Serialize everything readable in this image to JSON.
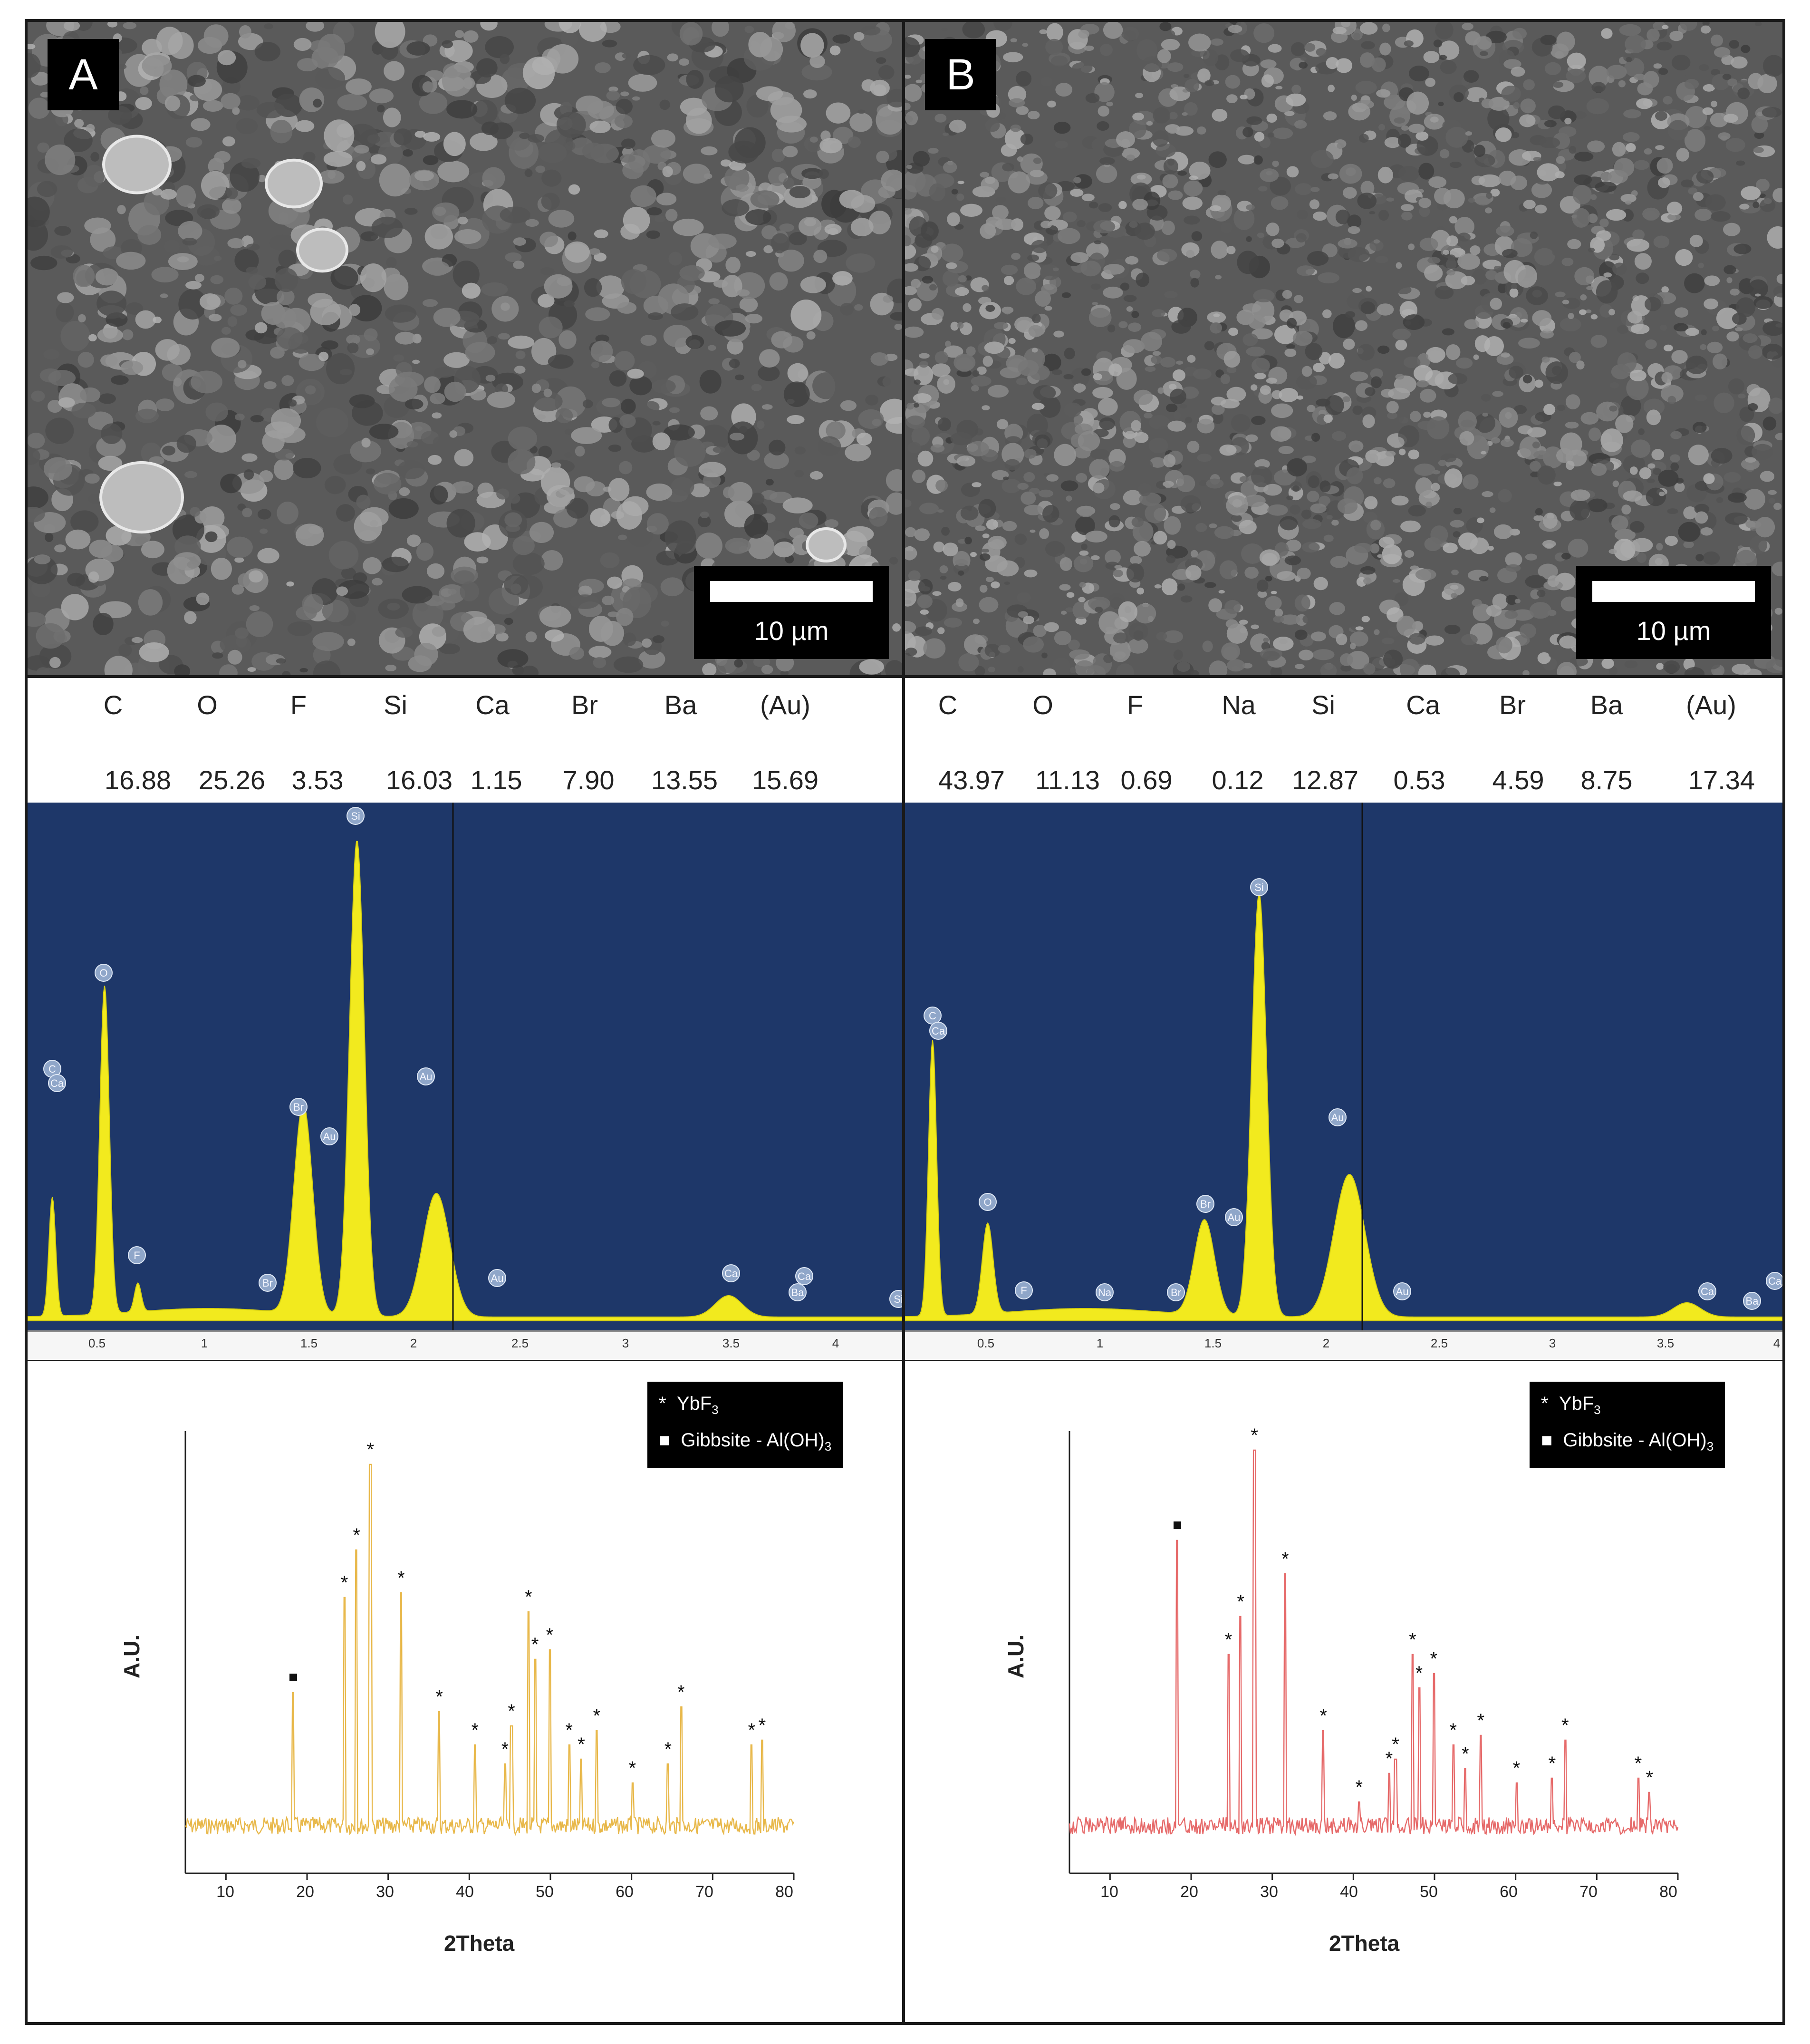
{
  "panels": [
    {
      "label": "A",
      "scalebar": "10 µm",
      "elements": [
        "C",
        "O",
        "F",
        "Si",
        "Ca",
        "Br",
        "Ba",
        "(Au)"
      ],
      "values": [
        "16.88",
        "25.26",
        "3.53",
        "16.03",
        "1.15",
        "7.90",
        "13.55",
        "15.69"
      ],
      "eds_peak_labels": [
        "C",
        "Ca",
        "O",
        "F",
        "Br",
        "Br",
        "Au",
        "Si",
        "Au",
        "Au",
        "Ca",
        "Ba",
        "Ca",
        "Si"
      ],
      "eds_axis_ticks": [
        "0.5",
        "1",
        "1.5",
        "2",
        "2.5",
        "3",
        "3.5",
        "4"
      ],
      "legend": {
        "ybf3_symbol": "*",
        "ybf3_label": "YbF",
        "ybf3_sub": "3",
        "gibb_symbol": "■",
        "gibb_label": "Gibbsite - Al(OH)",
        "gibb_sub": "3"
      },
      "xrd_ylabel": "A.U.",
      "xrd_xlabel": "2Theta",
      "xrd_ticks": [
        "10",
        "20",
        "30",
        "40",
        "50",
        "60",
        "70",
        "80"
      ],
      "color": "#e8b84a"
    },
    {
      "label": "B",
      "scalebar": "10 µm",
      "elements": [
        "C",
        "O",
        "F",
        "Na",
        "Si",
        "Ca",
        "Br",
        "Ba",
        "(Au)"
      ],
      "values": [
        "43.97",
        "11.13",
        "0.69",
        "0.12",
        "12.87",
        "0.53",
        "4.59",
        "8.75",
        "17.34"
      ],
      "eds_peak_labels": [
        "C",
        "Ca",
        "O",
        "F",
        "Na",
        "Br",
        "Br",
        "Au",
        "Si",
        "Au",
        "Au",
        "Ca",
        "Ba",
        "Ca"
      ],
      "eds_axis_ticks": [
        "0.5",
        "1",
        "1.5",
        "2",
        "2.5",
        "3",
        "3.5",
        "4"
      ],
      "legend": {
        "ybf3_symbol": "*",
        "ybf3_label": "YbF",
        "ybf3_sub": "3",
        "gibb_symbol": "■",
        "gibb_label": "Gibbsite - Al(OH)",
        "gibb_sub": "3"
      },
      "xrd_ylabel": "A.U.",
      "xrd_xlabel": "2Theta",
      "xrd_ticks": [
        "10",
        "20",
        "30",
        "40",
        "50",
        "60",
        "70",
        "80"
      ],
      "color": "#e66a6a"
    }
  ],
  "colors": {
    "eds_background": "#1e3769",
    "eds_fill": "#f2ea1e",
    "frame": "#1a1a1a"
  }
}
